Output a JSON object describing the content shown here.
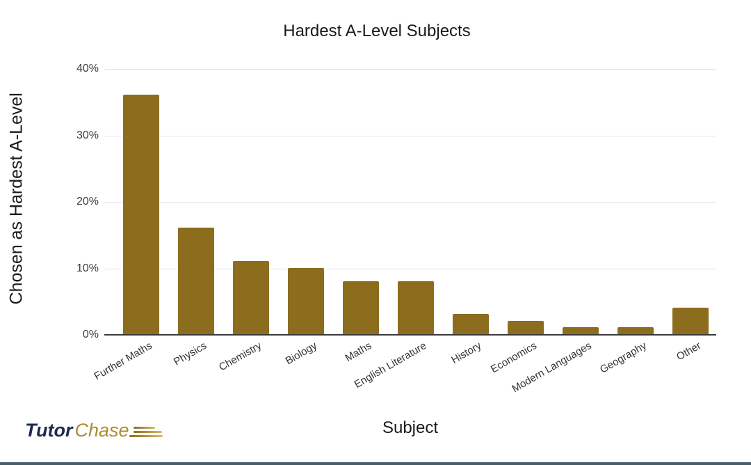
{
  "page": {
    "background_color": "#ffffff",
    "bottom_bar_color": "#465e68"
  },
  "logo": {
    "part1": "Tutor",
    "part2": "Chase",
    "part1_color": "#1c2b4d",
    "part2_color": "#ac8c2f",
    "speed_lines_color": "#8c6d1e"
  },
  "chart_data": {
    "type": "bar",
    "title": "Hardest A-Level Subjects",
    "xlabel": "Subject",
    "ylabel": "Chosen as Hardest  A-Level",
    "categories": [
      "Further Maths",
      "Physics",
      "Chemistry",
      "Biology",
      "Maths",
      "English Literature",
      "History",
      "Economics",
      "Modern Languages",
      "Geography",
      "Other"
    ],
    "values": [
      36,
      16,
      11,
      10,
      8,
      8,
      3,
      2,
      1,
      1,
      4
    ],
    "y_ticks": [
      "0%",
      "10%",
      "20%",
      "30%",
      "40%"
    ],
    "y_tick_values": [
      0,
      10,
      20,
      30,
      40
    ],
    "ylim": [
      0,
      40
    ],
    "grid": true,
    "legend_position": "none",
    "bar_color": "#8c6d1e",
    "gridline_color": "#e3e3e3",
    "axis_color": "#3a3a3a"
  }
}
